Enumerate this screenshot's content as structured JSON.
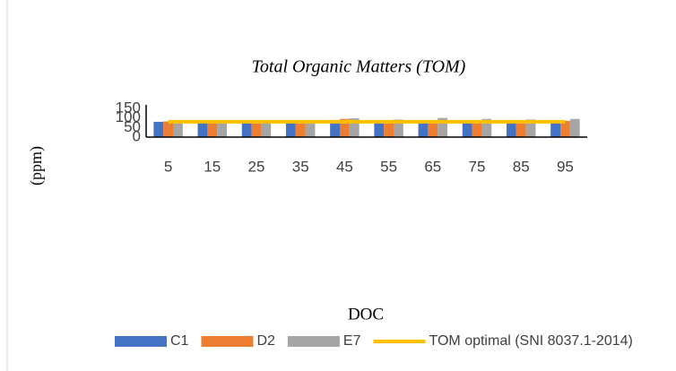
{
  "chart_data": {
    "type": "bar",
    "title": "Total Organic Matters (TOM)",
    "x_label": "DOC",
    "y_label": "(ppm)",
    "categories": [
      "5",
      "15",
      "25",
      "35",
      "45",
      "55",
      "65",
      "75",
      "85",
      "95"
    ],
    "series": [
      {
        "name": "C1",
        "color": "#4472c4",
        "values": [
          80,
          82,
          80,
          82,
          85,
          85,
          82,
          82,
          85,
          85
        ]
      },
      {
        "name": "D2",
        "color": "#ed7d31",
        "values": [
          82,
          85,
          80,
          85,
          95,
          88,
          88,
          85,
          88,
          85
        ]
      },
      {
        "name": "E7",
        "color": "#a5a5a5",
        "values": [
          82,
          85,
          82,
          88,
          98,
          92,
          100,
          95,
          92,
          95
        ]
      },
      {
        "name": "TOM optimal (SNI 8037.1-2014)",
        "color": "#ffc000",
        "type": "line",
        "values": [
          80,
          80,
          80,
          80,
          80,
          80,
          80,
          80,
          80,
          80
        ]
      }
    ],
    "ylim": [
      0,
      150
    ],
    "yticks": [
      0,
      50,
      100,
      150
    ],
    "legend": "bottom"
  }
}
